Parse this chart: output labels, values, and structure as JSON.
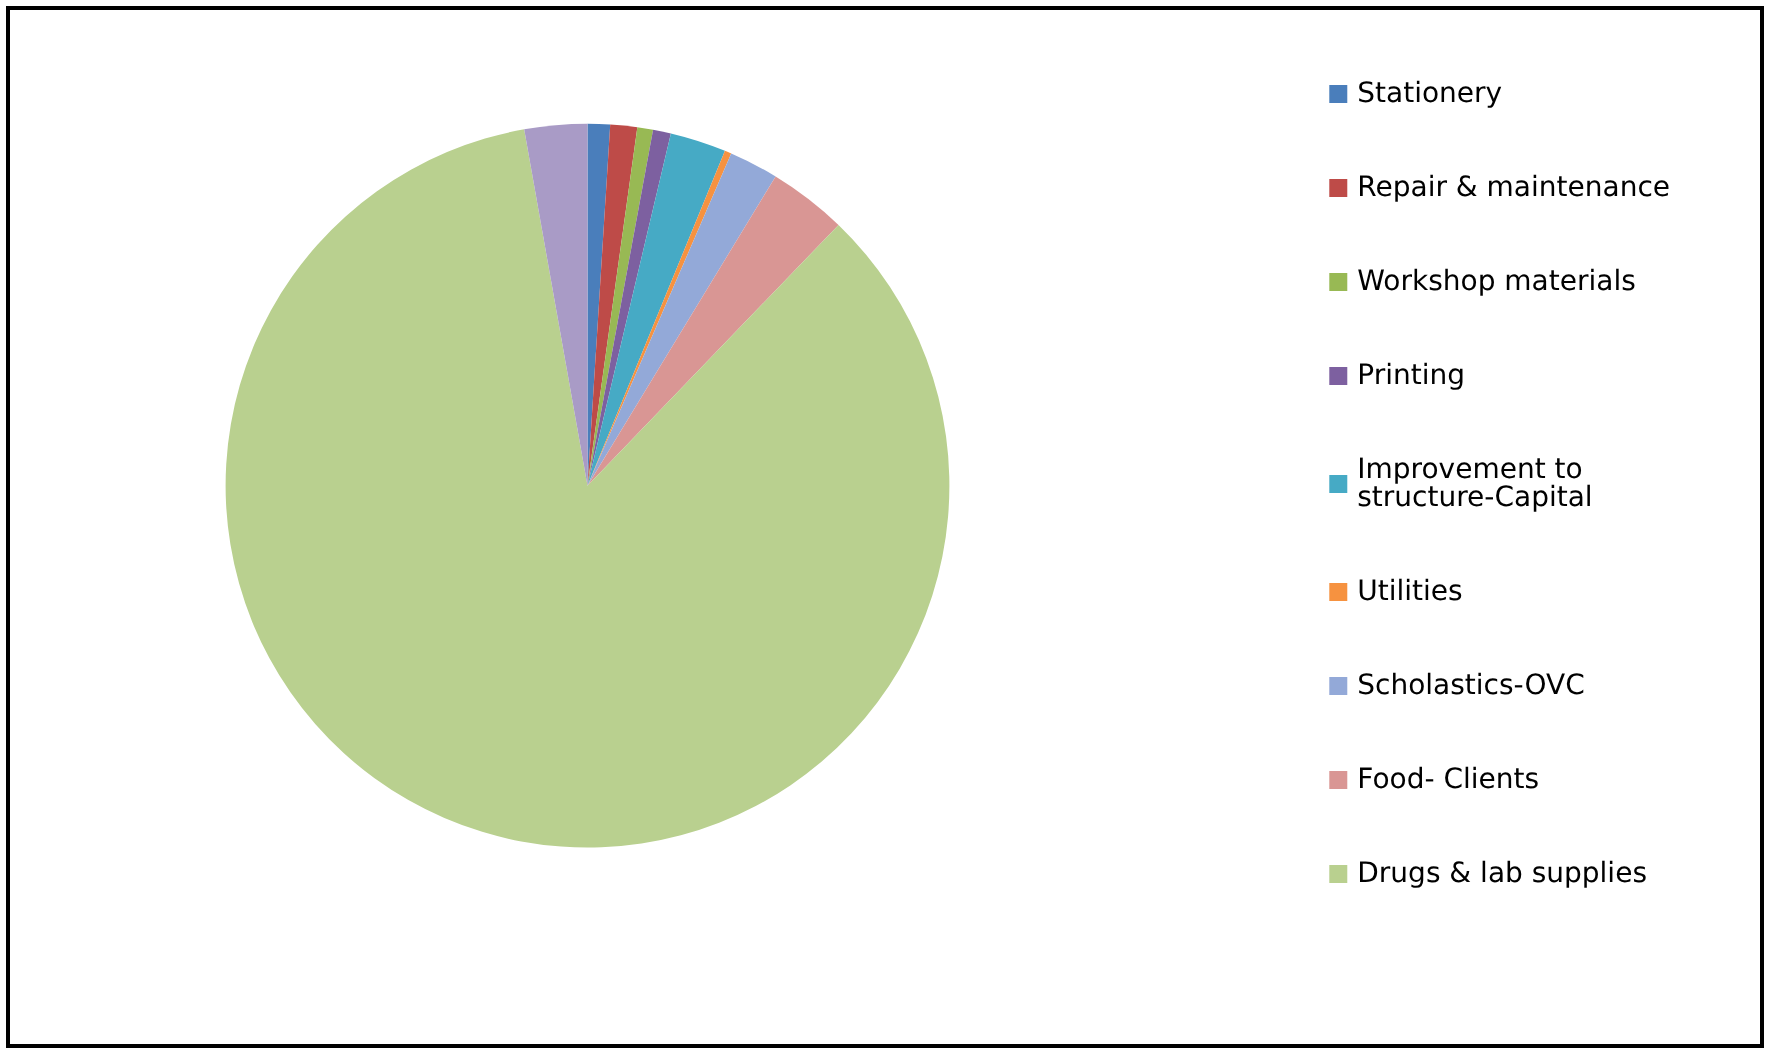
{
  "chart_data": {
    "type": "pie",
    "categories": [
      "Stationery",
      "Repair & maintenance",
      "Workshop materials",
      "Printing",
      "Improvement to structure-Capital",
      "Utilities",
      "Scholastics-OVC",
      "Food- Clients",
      "Drugs & lab supplies",
      null
    ],
    "values": [
      1.0,
      1.2,
      0.7,
      0.8,
      2.5,
      0.3,
      2.2,
      3.5,
      85.0,
      2.8
    ],
    "colors": [
      "#4a7ebb",
      "#be4b48",
      "#98b954",
      "#7d60a0",
      "#46aac5",
      "#f69240",
      "#93a9d8",
      "#d99694",
      "#b9d08f",
      "#a99bc6"
    ],
    "legend": "right"
  }
}
